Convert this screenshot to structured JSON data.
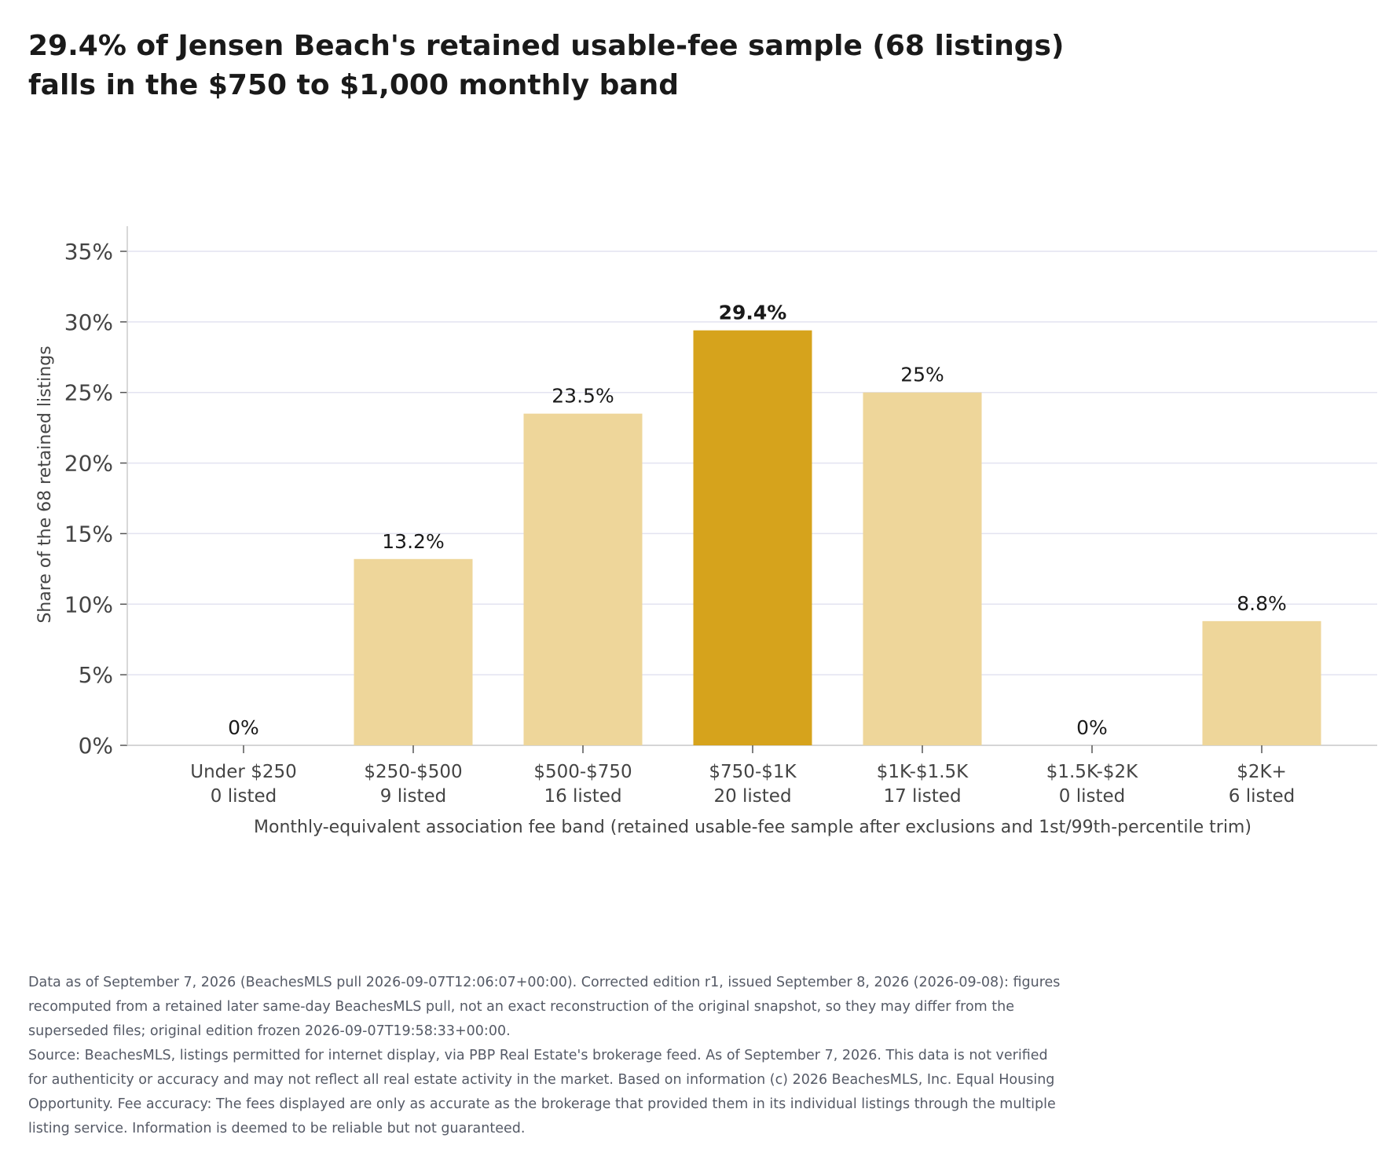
{
  "title_lines": [
    "29.4% of Jensen Beach's retained usable-fee sample (68 listings)",
    "falls in the $750 to $1,000 monthly band"
  ],
  "chart_data": {
    "type": "bar",
    "categories": [
      "Under $250",
      "$250-$500",
      "$500-$750",
      "$750-$1K",
      "$1K-$1.5K",
      "$1.5K-$2K",
      "$2K+"
    ],
    "counts": [
      "0 listed",
      "9 listed",
      "16 listed",
      "20 listed",
      "17 listed",
      "0 listed",
      "6 listed"
    ],
    "values": [
      0,
      13.2,
      23.5,
      29.4,
      25,
      0,
      8.8
    ],
    "value_labels": [
      "0%",
      "13.2%",
      "23.5%",
      "29.4%",
      "25%",
      "0%",
      "8.8%"
    ],
    "highlight_index": 3,
    "ylabel": "Share of the 68 retained listings",
    "xlabel": "Monthly-equivalent association fee band (retained usable-fee sample after exclusions and 1st/99th-percentile trim)",
    "ylim": [
      0,
      35
    ],
    "yticks": [
      0,
      5,
      10,
      15,
      20,
      25,
      30,
      35
    ],
    "ytick_labels": [
      "0%",
      "5%",
      "10%",
      "15%",
      "20%",
      "25%",
      "30%",
      "35%"
    ],
    "grid": true,
    "colors": {
      "bar": "#eed69a",
      "highlight": "#d6a31c",
      "grid": "#e3e3f0",
      "axis": "#cccccc",
      "text": "#1f1f1f",
      "tick_text": "#444444"
    }
  },
  "footnote_lines": [
    "Data as of September 7, 2026 (BeachesMLS pull 2026-09-07T12:06:07+00:00). Corrected edition r1, issued September 8, 2026 (2026-09-08): figures",
    "recomputed from a retained later same-day BeachesMLS pull, not an exact reconstruction of the original snapshot, so they may differ from the",
    "superseded files; original edition frozen 2026-09-07T19:58:33+00:00.",
    "Source: BeachesMLS, listings permitted for internet display, via PBP Real Estate's brokerage feed. As of September 7, 2026. This data is not verified",
    "for authenticity or accuracy and may not reflect all real estate activity in the market. Based on information (c) 2026 BeachesMLS, Inc. Equal Housing",
    "Opportunity. Fee accuracy: The fees displayed are only as accurate as the brokerage that provided them in its individual listings through the multiple",
    "listing service. Information is deemed to be reliable but not guaranteed."
  ]
}
